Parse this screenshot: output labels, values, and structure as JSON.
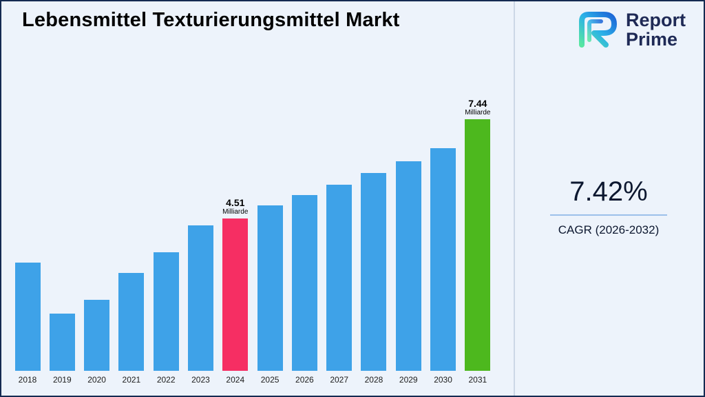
{
  "page": {
    "title": "Lebensmittel Texturierungsmittel Markt",
    "background_color": "#edf3fb",
    "border_color": "#142a52"
  },
  "logo": {
    "line1": "Report",
    "line2": "Prime",
    "text_color": "#1f2a56",
    "gradient_colors": [
      "#57e6a2",
      "#2bb1e8",
      "#1b63d6"
    ]
  },
  "stats": {
    "cagr_value": "7.42%",
    "cagr_label": "CAGR (2026-2032)",
    "accent_line_color": "#9cc0ea"
  },
  "chart_data": {
    "type": "bar",
    "title": "Lebensmittel Texturierungsmittel Markt",
    "unit": "Milliarde",
    "categories": [
      "2018",
      "2019",
      "2020",
      "2021",
      "2022",
      "2023",
      "2024",
      "2025",
      "2026",
      "2027",
      "2028",
      "2029",
      "2030",
      "2031"
    ],
    "values": [
      3.2,
      1.7,
      2.1,
      2.9,
      3.5,
      4.3,
      4.51,
      4.9,
      5.2,
      5.5,
      5.85,
      6.2,
      6.6,
      7.44
    ],
    "ylim": [
      0,
      8
    ],
    "grid": false,
    "legend": false,
    "bar_color": "#3ea2e8",
    "highlights": [
      {
        "year": "2024",
        "value": 4.51,
        "label_value": "4.51",
        "label_unit": "Milliarde",
        "color": "#f62e63"
      },
      {
        "year": "2031",
        "value": 7.44,
        "label_value": "7.44",
        "label_unit": "Milliarde",
        "color": "#4db81e"
      }
    ]
  }
}
